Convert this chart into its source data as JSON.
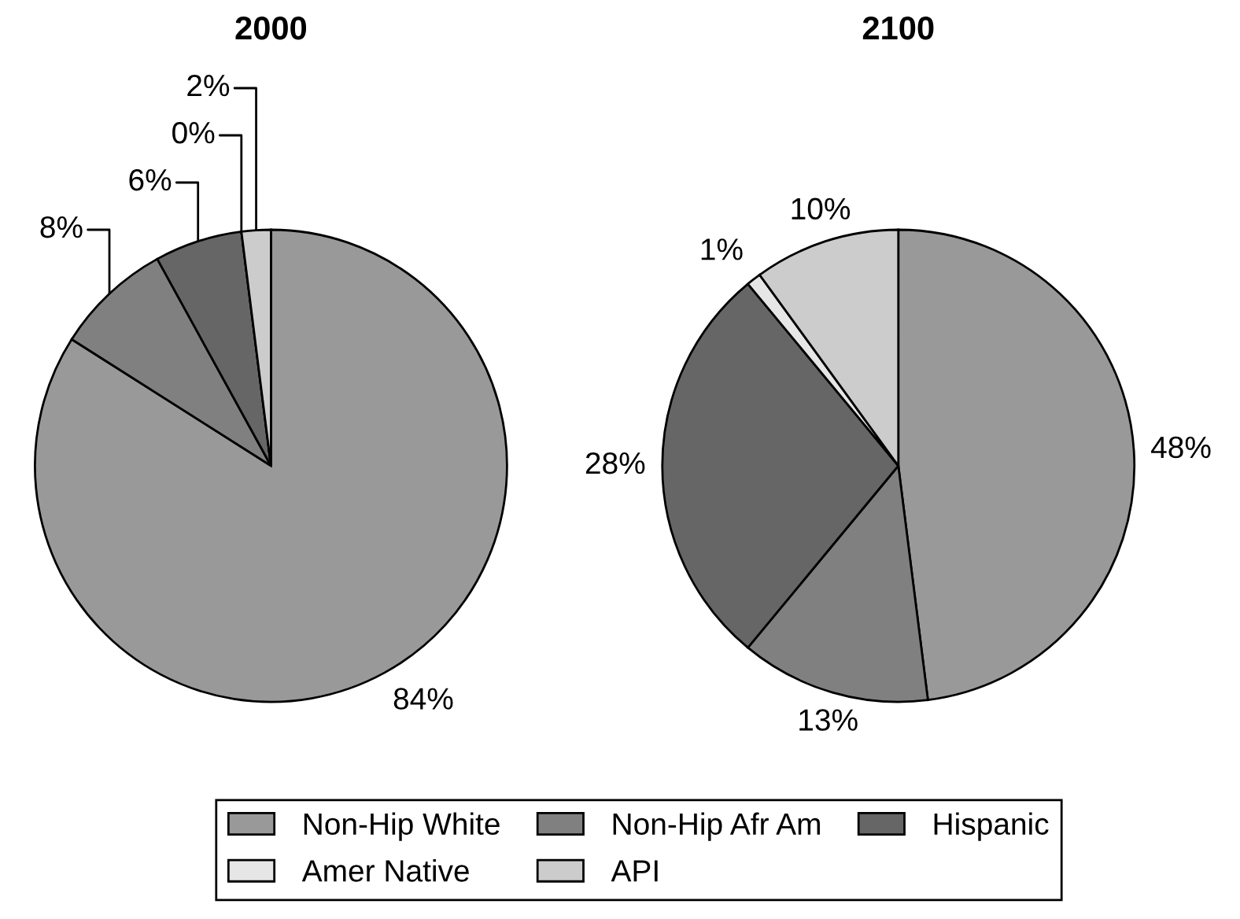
{
  "chart_data": [
    {
      "type": "pie",
      "title": "2000",
      "categories": [
        "Non-Hip White",
        "Non-Hip Afr Am",
        "Hispanic",
        "Amer Native",
        "API"
      ],
      "values": [
        84,
        8,
        6,
        0,
        2
      ],
      "colors": [
        "#999999",
        "#808080",
        "#666666",
        "#e6e6e6",
        "#cccccc"
      ],
      "value_labels": [
        "84%",
        "8%",
        "6%",
        "0%",
        "2%"
      ],
      "legend": "bottom"
    },
    {
      "type": "pie",
      "title": "2100",
      "categories": [
        null,
        null,
        null,
        null,
        null
      ],
      "values": [
        48,
        13,
        28,
        1,
        10
      ],
      "colors": [
        "#999999",
        "#808080",
        "#666666",
        "#e6e6e6",
        "#cccccc"
      ],
      "value_labels": [
        "48%",
        "13%",
        "28%",
        "1%",
        "10%"
      ]
    }
  ]
}
